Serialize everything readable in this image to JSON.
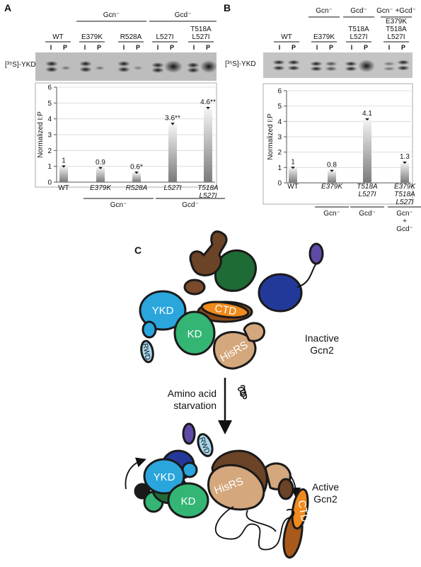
{
  "panels": {
    "a": "A",
    "b": "B",
    "c": "C"
  },
  "blot_a": {
    "ylabel": "[³⁵S]-YKD",
    "groups": [
      "Gcn⁻",
      "Gcd⁻"
    ],
    "lanes": [
      "WT",
      "E379K",
      "R528A",
      "L527I",
      "T518A L527I"
    ],
    "lane_labels": [
      "I",
      "P"
    ]
  },
  "blot_b": {
    "ylabel": "[³⁵S]-YKD",
    "groups": [
      "Gcn⁻",
      "Gcd⁻",
      "Gcn⁻ +Gcd⁻"
    ],
    "lanes": [
      "WT",
      "E379K",
      "T518A L527I",
      "E379K T518A L527I"
    ],
    "lane_labels": [
      "I",
      "P"
    ]
  },
  "chart_data": [
    {
      "type": "bar",
      "ylabel": "Normalized I:P",
      "categories": [
        "WT",
        "E379K",
        "R528A",
        "L527I",
        "T518A L527I"
      ],
      "values": [
        1,
        0.9,
        0.6,
        3.6,
        4.6
      ],
      "value_labels": [
        "1",
        "0.9",
        "0.6*",
        "3.6**",
        "4.6**"
      ],
      "errors": [
        0.05,
        0.05,
        0.06,
        0.15,
        0.15
      ],
      "groups": [
        "Gcn⁻",
        "Gcd⁻"
      ],
      "color": "#7a7a7a",
      "ylim": [
        0,
        6
      ],
      "yticks": [
        0,
        1,
        2,
        3,
        4,
        5,
        6
      ],
      "grid": true
    },
    {
      "type": "bar",
      "ylabel": "Normalized I:P",
      "categories": [
        "WT",
        "E379K",
        "T518A L527I",
        "E379K T518A L527I"
      ],
      "values": [
        1,
        0.8,
        4.1,
        1.3
      ],
      "value_labels": [
        "1",
        "0.8",
        "4.1",
        "1.3"
      ],
      "errors": [
        0.05,
        0.05,
        0.1,
        0.08
      ],
      "groups": [
        "Gcn⁻",
        "Gcd⁻",
        "Gcn⁻ + Gcd⁻"
      ],
      "color": "#7a7a7a",
      "ylim": [
        0,
        6
      ],
      "yticks": [
        0,
        1,
        2,
        3,
        4,
        5,
        6
      ],
      "grid": true
    }
  ],
  "diagram": {
    "ykd": "YKD",
    "ctd": "CTD",
    "kd": "KD",
    "hisrs": "HisRS",
    "rwd": "RWD",
    "inactive": [
      "Inactive",
      "Gcn2"
    ],
    "starvation": [
      "Amino acid",
      "starvation"
    ],
    "active": [
      "Active",
      "Gcn2"
    ]
  }
}
